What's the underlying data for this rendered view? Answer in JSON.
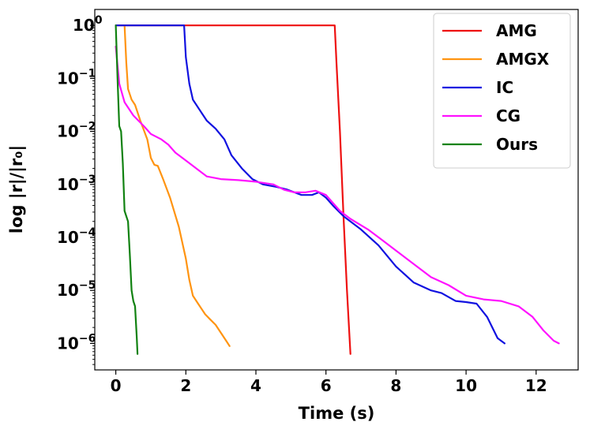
{
  "chart_data": {
    "type": "line",
    "xlabel": "Time (s)",
    "ylabel": "log |r|/|r₀|",
    "xlim": [
      -0.6,
      13.2
    ],
    "ylim_log10": [
      -6.5,
      0.3
    ],
    "yscale": "log",
    "grid": false,
    "legend_position": "top-right",
    "x_ticks": [
      0,
      2,
      4,
      6,
      8,
      10,
      12
    ],
    "y_ticks": [
      {
        "exp": 0,
        "base": "10",
        "label": "0"
      },
      {
        "exp": -1,
        "base": "10",
        "label": "−1"
      },
      {
        "exp": -2,
        "base": "10",
        "label": "−2"
      },
      {
        "exp": -3,
        "base": "10",
        "label": "−3"
      },
      {
        "exp": -4,
        "base": "10",
        "label": "−4"
      },
      {
        "exp": -5,
        "base": "10",
        "label": "−5"
      },
      {
        "exp": -6,
        "base": "10",
        "label": "−6"
      }
    ],
    "series": [
      {
        "name": "AMG",
        "color": "#ee1111",
        "points": [
          [
            0.0,
            0
          ],
          [
            6.25,
            0
          ],
          [
            6.3,
            -0.7
          ],
          [
            6.4,
            -2.0
          ],
          [
            6.5,
            -3.6
          ],
          [
            6.6,
            -5.0
          ],
          [
            6.7,
            -6.2
          ]
        ]
      },
      {
        "name": "AMGX",
        "color": "#ff9411",
        "points": [
          [
            0.25,
            0
          ],
          [
            0.3,
            -0.7
          ],
          [
            0.35,
            -1.2
          ],
          [
            0.45,
            -1.4
          ],
          [
            0.55,
            -1.5
          ],
          [
            0.7,
            -1.8
          ],
          [
            0.9,
            -2.15
          ],
          [
            1.0,
            -2.5
          ],
          [
            1.1,
            -2.63
          ],
          [
            1.2,
            -2.65
          ],
          [
            1.35,
            -2.9
          ],
          [
            1.55,
            -3.25
          ],
          [
            1.8,
            -3.8
          ],
          [
            2.0,
            -4.4
          ],
          [
            2.1,
            -4.8
          ],
          [
            2.2,
            -5.1
          ],
          [
            2.35,
            -5.25
          ],
          [
            2.55,
            -5.45
          ],
          [
            2.7,
            -5.55
          ],
          [
            2.85,
            -5.65
          ],
          [
            3.0,
            -5.8
          ],
          [
            3.15,
            -5.95
          ],
          [
            3.25,
            -6.05
          ]
        ]
      },
      {
        "name": "IC",
        "color": "#1111e0",
        "points": [
          [
            0.0,
            0
          ],
          [
            1.95,
            0
          ],
          [
            2.0,
            -0.6
          ],
          [
            2.1,
            -1.1
          ],
          [
            2.2,
            -1.4
          ],
          [
            2.4,
            -1.6
          ],
          [
            2.6,
            -1.8
          ],
          [
            2.85,
            -1.95
          ],
          [
            3.1,
            -2.15
          ],
          [
            3.3,
            -2.45
          ],
          [
            3.6,
            -2.7
          ],
          [
            3.9,
            -2.9
          ],
          [
            4.2,
            -3.0
          ],
          [
            4.6,
            -3.05
          ],
          [
            4.9,
            -3.1
          ],
          [
            5.3,
            -3.2
          ],
          [
            5.6,
            -3.2
          ],
          [
            5.8,
            -3.15
          ],
          [
            6.0,
            -3.25
          ],
          [
            6.2,
            -3.4
          ],
          [
            6.5,
            -3.6
          ],
          [
            7.0,
            -3.85
          ],
          [
            7.5,
            -4.15
          ],
          [
            8.0,
            -4.55
          ],
          [
            8.5,
            -4.85
          ],
          [
            9.0,
            -5.0
          ],
          [
            9.3,
            -5.05
          ],
          [
            9.7,
            -5.2
          ],
          [
            10.0,
            -5.22
          ],
          [
            10.3,
            -5.25
          ],
          [
            10.6,
            -5.5
          ],
          [
            10.9,
            -5.9
          ],
          [
            11.1,
            -6.0
          ]
        ]
      },
      {
        "name": "CG",
        "color": "#ff11ff",
        "points": [
          [
            0.0,
            -0.4
          ],
          [
            0.1,
            -1.1
          ],
          [
            0.25,
            -1.45
          ],
          [
            0.5,
            -1.7
          ],
          [
            0.8,
            -1.9
          ],
          [
            1.0,
            -2.05
          ],
          [
            1.3,
            -2.15
          ],
          [
            1.5,
            -2.25
          ],
          [
            1.7,
            -2.4
          ],
          [
            2.0,
            -2.55
          ],
          [
            2.3,
            -2.7
          ],
          [
            2.6,
            -2.85
          ],
          [
            3.0,
            -2.9
          ],
          [
            3.5,
            -2.92
          ],
          [
            4.0,
            -2.95
          ],
          [
            4.5,
            -3.0
          ],
          [
            4.8,
            -3.1
          ],
          [
            5.1,
            -3.15
          ],
          [
            5.4,
            -3.15
          ],
          [
            5.7,
            -3.12
          ],
          [
            6.0,
            -3.2
          ],
          [
            6.4,
            -3.5
          ],
          [
            6.7,
            -3.65
          ],
          [
            7.2,
            -3.85
          ],
          [
            7.6,
            -4.05
          ],
          [
            8.0,
            -4.25
          ],
          [
            8.5,
            -4.5
          ],
          [
            9.0,
            -4.75
          ],
          [
            9.5,
            -4.9
          ],
          [
            10.0,
            -5.1
          ],
          [
            10.5,
            -5.17
          ],
          [
            11.0,
            -5.2
          ],
          [
            11.5,
            -5.3
          ],
          [
            11.9,
            -5.5
          ],
          [
            12.2,
            -5.75
          ],
          [
            12.5,
            -5.95
          ],
          [
            12.65,
            -6.0
          ]
        ]
      },
      {
        "name": "Ours",
        "color": "#118211",
        "points": [
          [
            0.0,
            0
          ],
          [
            0.05,
            -1.0
          ],
          [
            0.1,
            -1.9
          ],
          [
            0.15,
            -2.0
          ],
          [
            0.2,
            -2.6
          ],
          [
            0.25,
            -3.5
          ],
          [
            0.3,
            -3.6
          ],
          [
            0.35,
            -3.7
          ],
          [
            0.4,
            -4.3
          ],
          [
            0.45,
            -5.0
          ],
          [
            0.5,
            -5.2
          ],
          [
            0.55,
            -5.3
          ],
          [
            0.6,
            -5.9
          ],
          [
            0.62,
            -6.2
          ]
        ]
      }
    ]
  }
}
